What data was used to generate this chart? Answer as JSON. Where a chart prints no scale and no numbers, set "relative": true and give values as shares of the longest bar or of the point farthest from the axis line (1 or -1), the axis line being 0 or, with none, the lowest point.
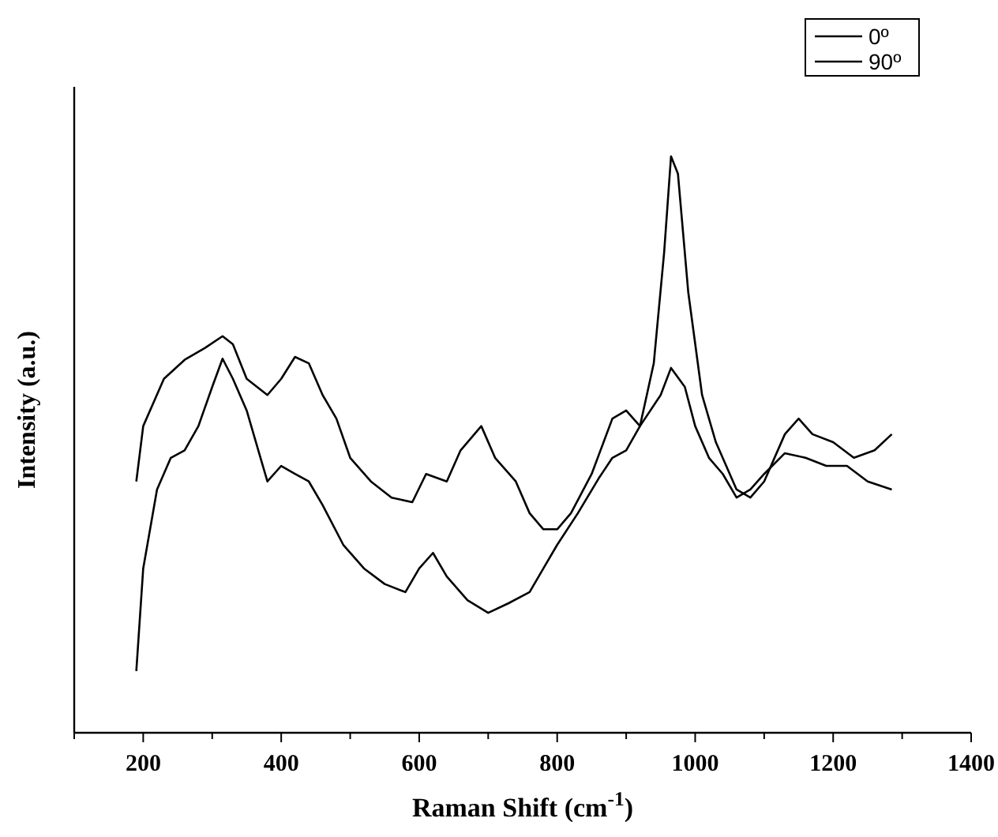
{
  "chart_data": {
    "type": "line",
    "xlabel": "Raman Shift (cm$^{-1}$)",
    "ylabel": "Intensity (a.u.)",
    "relative": true,
    "legend": "top right",
    "xlim": [
      100,
      1400
    ],
    "xticks": [
      {
        "value": 100,
        "label": null
      },
      200,
      {
        "value": 300,
        "label": null
      },
      400,
      {
        "value": 500,
        "label": null
      },
      600,
      {
        "value": 700,
        "label": null
      },
      800,
      {
        "value": 900,
        "label": null
      },
      1000,
      {
        "value": 1100,
        "label": null
      },
      1200,
      {
        "value": 1300,
        "label": null
      },
      1400
    ],
    "series": [
      {
        "name": "0º",
        "color": "#000000",
        "x": [
          190,
          200,
          230,
          260,
          290,
          315,
          330,
          350,
          380,
          400,
          420,
          440,
          460,
          480,
          500,
          530,
          560,
          590,
          610,
          640,
          660,
          690,
          710,
          740,
          760,
          780,
          800,
          820,
          850,
          880,
          900,
          920,
          940,
          955,
          965,
          975,
          990,
          1010,
          1030,
          1060,
          1080,
          1100,
          1130,
          1150,
          1170,
          1200,
          1230,
          1260,
          1285
        ],
        "values": [
          0.436,
          0.532,
          0.614,
          0.647,
          0.668,
          0.688,
          0.674,
          0.614,
          0.586,
          0.614,
          0.652,
          0.641,
          0.586,
          0.545,
          0.477,
          0.436,
          0.408,
          0.4,
          0.449,
          0.436,
          0.49,
          0.532,
          0.477,
          0.436,
          0.381,
          0.353,
          0.353,
          0.381,
          0.449,
          0.545,
          0.559,
          0.532,
          0.641,
          0.833,
          1,
          0.97,
          0.764,
          0.586,
          0.504,
          0.422,
          0.408,
          0.436,
          0.518,
          0.545,
          0.518,
          0.504,
          0.477,
          0.49,
          0.518
        ]
      },
      {
        "name": "90º",
        "color": "#000000",
        "x": [
          190,
          200,
          220,
          240,
          260,
          280,
          300,
          315,
          330,
          350,
          370,
          380,
          400,
          420,
          440,
          460,
          490,
          520,
          550,
          580,
          600,
          620,
          640,
          670,
          700,
          730,
          760,
          780,
          800,
          830,
          860,
          880,
          900,
          920,
          950,
          965,
          985,
          1000,
          1020,
          1040,
          1060,
          1080,
          1100,
          1130,
          1160,
          1190,
          1220,
          1250,
          1285
        ],
        "values": [
          0.107,
          0.285,
          0.422,
          0.477,
          0.49,
          0.532,
          0.6,
          0.649,
          0.614,
          0.559,
          0.477,
          0.436,
          0.463,
          0.449,
          0.436,
          0.395,
          0.326,
          0.285,
          0.258,
          0.244,
          0.285,
          0.312,
          0.271,
          0.23,
          0.208,
          0.225,
          0.244,
          0.285,
          0.326,
          0.381,
          0.441,
          0.477,
          0.49,
          0.532,
          0.586,
          0.633,
          0.6,
          0.532,
          0.477,
          0.449,
          0.408,
          0.422,
          0.449,
          0.485,
          0.477,
          0.463,
          0.463,
          0.436,
          0.422
        ]
      }
    ]
  }
}
